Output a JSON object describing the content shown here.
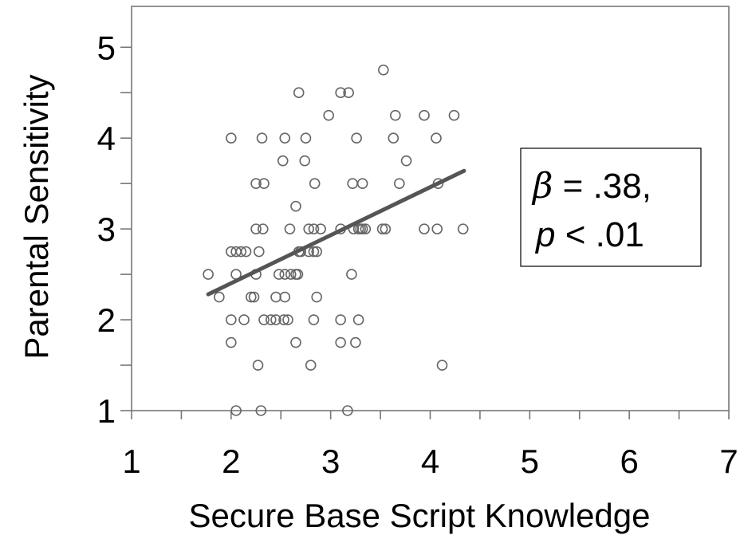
{
  "chart_data": {
    "type": "scatter",
    "title": "",
    "xlabel": "Secure Base Script Knowledge",
    "ylabel": "Parental Sensitivity",
    "xlim": [
      1,
      7
    ],
    "ylim": [
      1,
      5.45
    ],
    "xticks": [
      "1",
      "2",
      "3",
      "4",
      "5",
      "6",
      "7"
    ],
    "yticks": [
      "1",
      "2",
      "3",
      "4",
      "5"
    ],
    "grid": false,
    "legend": "none",
    "marker_color": "#666666",
    "line_color": "#555555",
    "points": [
      [
        2.05,
        1.0
      ],
      [
        2.3,
        1.0
      ],
      [
        3.17,
        1.0
      ],
      [
        2.27,
        1.5
      ],
      [
        2.8,
        1.5
      ],
      [
        4.12,
        1.5
      ],
      [
        2.0,
        1.75
      ],
      [
        2.65,
        1.75
      ],
      [
        3.1,
        1.75
      ],
      [
        3.25,
        1.75
      ],
      [
        2.0,
        2.0
      ],
      [
        2.13,
        2.0
      ],
      [
        2.33,
        2.0
      ],
      [
        2.4,
        2.0
      ],
      [
        2.45,
        2.0
      ],
      [
        2.53,
        2.0
      ],
      [
        2.57,
        2.0
      ],
      [
        2.83,
        2.0
      ],
      [
        3.1,
        2.0
      ],
      [
        3.28,
        2.0
      ],
      [
        1.88,
        2.25
      ],
      [
        2.2,
        2.25
      ],
      [
        2.23,
        2.25
      ],
      [
        2.45,
        2.25
      ],
      [
        2.54,
        2.25
      ],
      [
        2.86,
        2.25
      ],
      [
        1.77,
        2.5
      ],
      [
        2.05,
        2.5
      ],
      [
        2.25,
        2.5
      ],
      [
        2.48,
        2.5
      ],
      [
        2.54,
        2.5
      ],
      [
        2.6,
        2.5
      ],
      [
        2.65,
        2.5
      ],
      [
        2.67,
        2.5
      ],
      [
        3.21,
        2.5
      ],
      [
        2.0,
        2.75
      ],
      [
        2.05,
        2.75
      ],
      [
        2.1,
        2.75
      ],
      [
        2.15,
        2.75
      ],
      [
        2.28,
        2.75
      ],
      [
        2.68,
        2.75
      ],
      [
        2.7,
        2.75
      ],
      [
        2.78,
        2.75
      ],
      [
        2.83,
        2.75
      ],
      [
        2.86,
        2.75
      ],
      [
        2.25,
        3.0
      ],
      [
        2.32,
        3.0
      ],
      [
        2.59,
        3.0
      ],
      [
        2.78,
        3.0
      ],
      [
        2.83,
        3.0
      ],
      [
        2.9,
        3.0
      ],
      [
        3.1,
        3.0
      ],
      [
        3.23,
        3.0
      ],
      [
        3.28,
        3.0
      ],
      [
        3.3,
        3.0
      ],
      [
        3.32,
        3.0
      ],
      [
        3.35,
        3.0
      ],
      [
        3.52,
        3.0
      ],
      [
        3.55,
        3.0
      ],
      [
        3.94,
        3.0
      ],
      [
        4.07,
        3.0
      ],
      [
        4.33,
        3.0
      ],
      [
        2.65,
        3.25
      ],
      [
        2.25,
        3.5
      ],
      [
        2.33,
        3.5
      ],
      [
        2.84,
        3.5
      ],
      [
        3.22,
        3.5
      ],
      [
        3.32,
        3.5
      ],
      [
        3.69,
        3.5
      ],
      [
        4.08,
        3.5
      ],
      [
        2.52,
        3.75
      ],
      [
        2.74,
        3.75
      ],
      [
        3.76,
        3.75
      ],
      [
        2.0,
        4.0
      ],
      [
        2.31,
        4.0
      ],
      [
        2.54,
        4.0
      ],
      [
        2.75,
        4.0
      ],
      [
        3.26,
        4.0
      ],
      [
        3.63,
        4.0
      ],
      [
        4.06,
        4.0
      ],
      [
        2.98,
        4.25
      ],
      [
        3.65,
        4.25
      ],
      [
        3.94,
        4.25
      ],
      [
        4.24,
        4.25
      ],
      [
        2.68,
        4.5
      ],
      [
        3.1,
        4.5
      ],
      [
        3.18,
        4.5
      ],
      [
        3.53,
        4.75
      ]
    ],
    "regression_line": {
      "x": [
        1.77,
        4.34
      ],
      "y": [
        2.28,
        3.64
      ]
    },
    "annotation": {
      "beta_symbol": "β",
      "beta_text": " = .38,",
      "p_symbol": "p",
      "p_text": " < .01"
    }
  }
}
